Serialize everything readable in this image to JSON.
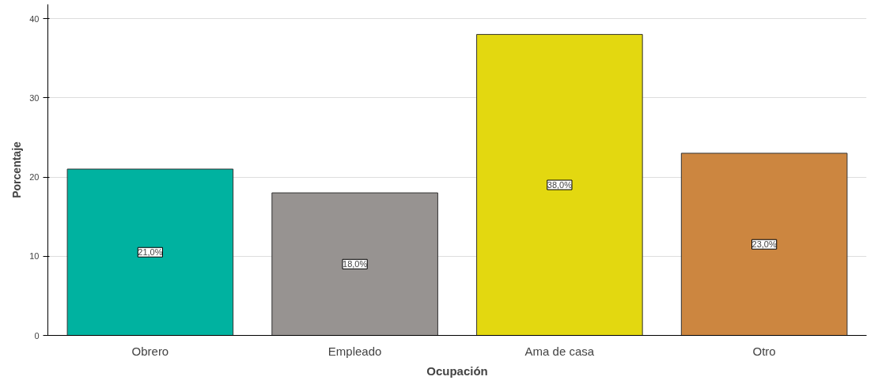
{
  "chart_data": {
    "type": "bar",
    "xlabel": "Ocupación",
    "ylabel": "Porcentaje",
    "categories": [
      "Obrero",
      "Empleado",
      "Ama de casa",
      "Otro"
    ],
    "values": [
      21.0,
      18.0,
      38.0,
      23.0
    ],
    "colors": [
      "#00b2a0",
      "#979391",
      "#e3d810",
      "#cc8640"
    ],
    "value_labels": [
      "21,0%",
      "18,0%",
      "38,0%",
      "23,0%"
    ],
    "ylim": [
      0,
      41.8
    ],
    "yticks": [
      0,
      10,
      20,
      30,
      40
    ],
    "grid": "y"
  }
}
